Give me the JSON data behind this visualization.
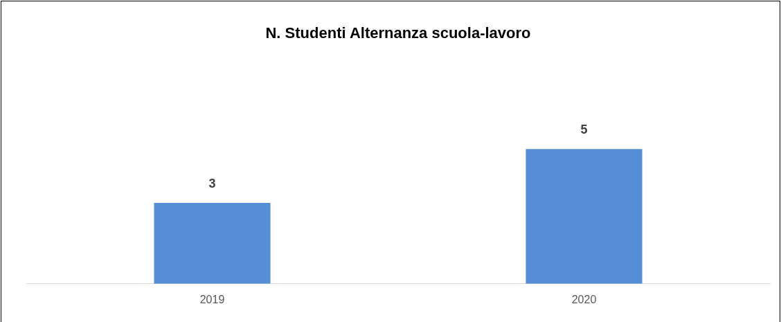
{
  "chart_data": {
    "type": "bar",
    "title": "N. Studenti Alternanza scuola-lavoro",
    "categories": [
      "2019",
      "2020"
    ],
    "series": [
      {
        "color": "#558ed5",
        "values": [
          3,
          5
        ]
      }
    ],
    "tick_labels": "x",
    "data_labels": true,
    "legend": false
  }
}
